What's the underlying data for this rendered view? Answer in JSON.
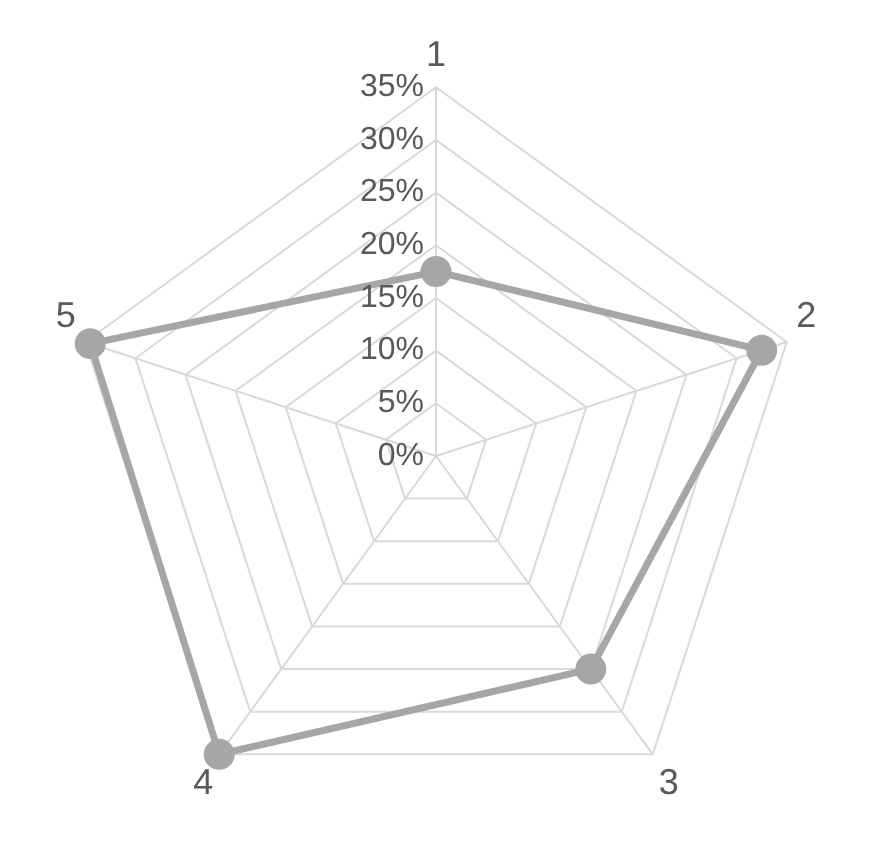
{
  "chart_data": {
    "type": "radar",
    "categories": [
      "1",
      "2",
      "3",
      "4",
      "5"
    ],
    "series": [
      {
        "color": "#a6a6a6",
        "values": [
          17.5,
          32.5,
          25,
          35,
          34.5
        ]
      }
    ],
    "ylim": [
      0,
      35
    ],
    "yticks": [
      {
        "value": 0,
        "label": "0%"
      },
      {
        "value": 5,
        "label": "5%"
      },
      {
        "value": 10,
        "label": "10%"
      },
      {
        "value": 15,
        "label": "15%"
      },
      {
        "value": 20,
        "label": "20%"
      },
      {
        "value": 25,
        "label": "25%"
      },
      {
        "value": 30,
        "label": "30%"
      },
      {
        "value": 35,
        "label": "35%"
      }
    ],
    "grid": true,
    "marker": "circle",
    "line_style": "solid",
    "legend": false
  }
}
